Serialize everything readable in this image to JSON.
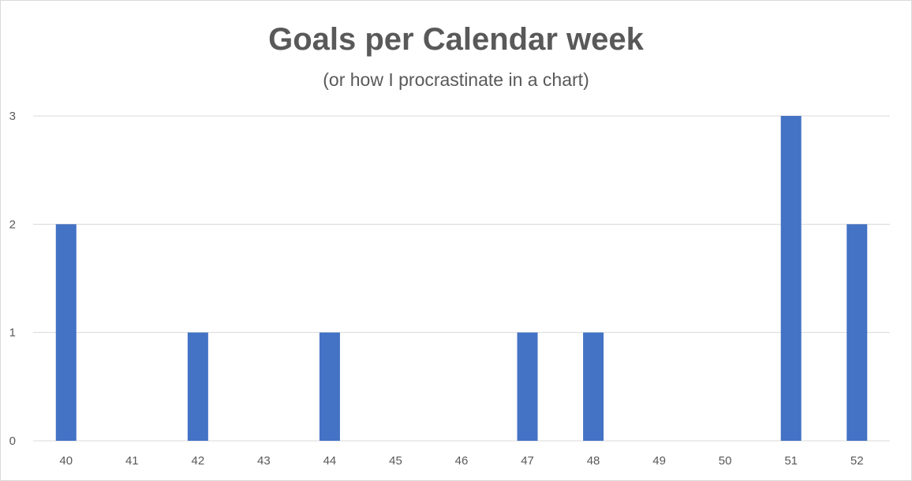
{
  "chart_data": {
    "type": "bar",
    "title": "Goals per Calendar week",
    "subtitle": "(or how I procrastinate in a chart)",
    "xlabel": "",
    "ylabel": "",
    "categories": [
      "40",
      "41",
      "42",
      "43",
      "44",
      "45",
      "46",
      "47",
      "48",
      "49",
      "50",
      "51",
      "52"
    ],
    "values": [
      2,
      0,
      1,
      0,
      1,
      0,
      0,
      1,
      1,
      0,
      0,
      3,
      2
    ],
    "ylim": [
      0,
      3
    ],
    "yticks": [
      "0",
      "1",
      "2",
      "3"
    ],
    "grid": true,
    "legend": "none",
    "bar_color": "#4472c4",
    "grid_color": "#d9d9d9",
    "text_color": "#595959"
  }
}
